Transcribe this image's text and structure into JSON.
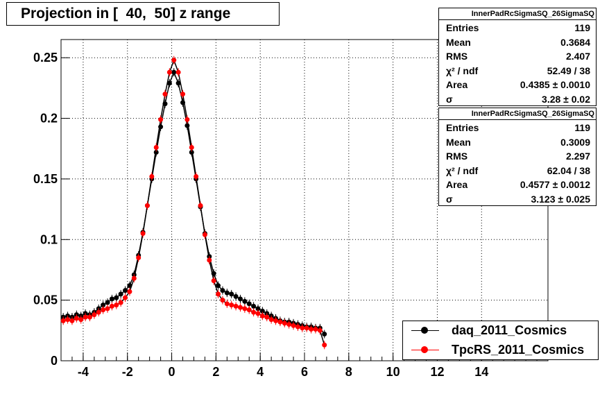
{
  "chart_data": {
    "type": "scatter",
    "title": "Projection in [  40,  50] z range",
    "xlabel": "",
    "ylabel": "",
    "xlim": [
      -5,
      17
    ],
    "ylim": [
      0,
      0.265
    ],
    "grid": true,
    "x_ticks": [
      "-4",
      "-2",
      "0",
      "2",
      "4",
      "6",
      "8",
      "10",
      "12",
      "14"
    ],
    "x_tick_values": [
      -4,
      -2,
      0,
      2,
      4,
      6,
      8,
      10,
      12,
      14
    ],
    "y_ticks": [
      "0",
      "0.05",
      "0.1",
      "0.15",
      "0.2",
      "0.25"
    ],
    "y_tick_values": [
      0,
      0.05,
      0.1,
      0.15,
      0.2,
      0.25
    ],
    "legend_position": "bottom-right",
    "series": [
      {
        "name": "daq_2011_Cosmics",
        "color": "#000000",
        "fit_sigma": 3.28,
        "points": [
          [
            -4.9,
            0.036
          ],
          [
            -4.7,
            0.037
          ],
          [
            -4.5,
            0.036
          ],
          [
            -4.3,
            0.038
          ],
          [
            -4.1,
            0.037
          ],
          [
            -3.9,
            0.039
          ],
          [
            -3.7,
            0.038
          ],
          [
            -3.5,
            0.04
          ],
          [
            -3.3,
            0.043
          ],
          [
            -3.1,
            0.046
          ],
          [
            -2.9,
            0.048
          ],
          [
            -2.7,
            0.051
          ],
          [
            -2.5,
            0.052
          ],
          [
            -2.3,
            0.055
          ],
          [
            -2.1,
            0.058
          ],
          [
            -1.9,
            0.062
          ],
          [
            -1.7,
            0.071
          ],
          [
            -1.5,
            0.087
          ],
          [
            -1.3,
            0.106
          ],
          [
            -1.1,
            0.128
          ],
          [
            -0.9,
            0.15
          ],
          [
            -0.7,
            0.172
          ],
          [
            -0.5,
            0.193
          ],
          [
            -0.3,
            0.212
          ],
          [
            -0.1,
            0.229
          ],
          [
            0.1,
            0.238
          ],
          [
            0.3,
            0.229
          ],
          [
            0.5,
            0.213
          ],
          [
            0.7,
            0.194
          ],
          [
            0.9,
            0.172
          ],
          [
            1.1,
            0.15
          ],
          [
            1.3,
            0.127
          ],
          [
            1.5,
            0.105
          ],
          [
            1.7,
            0.086
          ],
          [
            1.9,
            0.072
          ],
          [
            2.1,
            0.062
          ],
          [
            2.3,
            0.058
          ],
          [
            2.5,
            0.056
          ],
          [
            2.7,
            0.055
          ],
          [
            2.9,
            0.053
          ],
          [
            3.1,
            0.051
          ],
          [
            3.3,
            0.049
          ],
          [
            3.5,
            0.047
          ],
          [
            3.7,
            0.045
          ],
          [
            3.9,
            0.043
          ],
          [
            4.1,
            0.041
          ],
          [
            4.3,
            0.039
          ],
          [
            4.5,
            0.037
          ],
          [
            4.7,
            0.035
          ],
          [
            4.9,
            0.033
          ],
          [
            5.1,
            0.032
          ],
          [
            5.3,
            0.032
          ],
          [
            5.5,
            0.031
          ],
          [
            5.7,
            0.03
          ],
          [
            5.9,
            0.029
          ],
          [
            6.1,
            0.028
          ],
          [
            6.3,
            0.028
          ],
          [
            6.5,
            0.027
          ],
          [
            6.7,
            0.027
          ],
          [
            6.9,
            0.022
          ]
        ]
      },
      {
        "name": "TpcRS_2011_Cosmics",
        "color": "#ff0000",
        "fit_sigma": 3.123,
        "points": [
          [
            -4.9,
            0.033
          ],
          [
            -4.7,
            0.034
          ],
          [
            -4.5,
            0.033
          ],
          [
            -4.3,
            0.035
          ],
          [
            -4.1,
            0.034
          ],
          [
            -3.9,
            0.036
          ],
          [
            -3.7,
            0.036
          ],
          [
            -3.5,
            0.038
          ],
          [
            -3.3,
            0.04
          ],
          [
            -3.1,
            0.042
          ],
          [
            -2.9,
            0.043
          ],
          [
            -2.7,
            0.045
          ],
          [
            -2.5,
            0.046
          ],
          [
            -2.3,
            0.048
          ],
          [
            -2.1,
            0.052
          ],
          [
            -1.9,
            0.057
          ],
          [
            -1.7,
            0.068
          ],
          [
            -1.5,
            0.085
          ],
          [
            -1.3,
            0.105
          ],
          [
            -1.1,
            0.128
          ],
          [
            -0.9,
            0.152
          ],
          [
            -0.7,
            0.176
          ],
          [
            -0.5,
            0.199
          ],
          [
            -0.3,
            0.22
          ],
          [
            -0.1,
            0.238
          ],
          [
            0.1,
            0.248
          ],
          [
            0.3,
            0.238
          ],
          [
            0.5,
            0.22
          ],
          [
            0.7,
            0.199
          ],
          [
            0.9,
            0.176
          ],
          [
            1.1,
            0.152
          ],
          [
            1.3,
            0.128
          ],
          [
            1.5,
            0.104
          ],
          [
            1.7,
            0.083
          ],
          [
            1.9,
            0.066
          ],
          [
            2.1,
            0.055
          ],
          [
            2.3,
            0.05
          ],
          [
            2.5,
            0.047
          ],
          [
            2.7,
            0.046
          ],
          [
            2.9,
            0.045
          ],
          [
            3.1,
            0.044
          ],
          [
            3.3,
            0.043
          ],
          [
            3.5,
            0.042
          ],
          [
            3.7,
            0.04
          ],
          [
            3.9,
            0.039
          ],
          [
            4.1,
            0.037
          ],
          [
            4.3,
            0.036
          ],
          [
            4.5,
            0.034
          ],
          [
            4.7,
            0.033
          ],
          [
            4.9,
            0.032
          ],
          [
            5.1,
            0.031
          ],
          [
            5.3,
            0.03
          ],
          [
            5.5,
            0.029
          ],
          [
            5.7,
            0.028
          ],
          [
            5.9,
            0.027
          ],
          [
            6.1,
            0.027
          ],
          [
            6.3,
            0.026
          ],
          [
            6.5,
            0.026
          ],
          [
            6.7,
            0.025
          ],
          [
            6.9,
            0.013
          ]
        ]
      }
    ]
  },
  "stats": [
    {
      "title": "InnerPadRcSigmaSQ_26SigmaSQ",
      "rows": [
        {
          "label": "Entries",
          "value": "119"
        },
        {
          "label": "Mean",
          "value": "0.3684"
        },
        {
          "label": "RMS",
          "value": "2.407"
        },
        {
          "label": "χ² / ndf",
          "value": "52.49 / 38"
        },
        {
          "label": "Area",
          "value": "0.4385 ± 0.0010"
        },
        {
          "label": "σ",
          "value": "3.28 ± 0.02"
        }
      ]
    },
    {
      "title": "InnerPadRcSigmaSQ_26SigmaSQ",
      "rows": [
        {
          "label": "Entries",
          "value": "119"
        },
        {
          "label": "Mean",
          "value": "0.3009"
        },
        {
          "label": "RMS",
          "value": "2.297"
        },
        {
          "label": "χ² / ndf",
          "value": "62.04 / 38"
        },
        {
          "label": "Area",
          "value": "0.4577 ± 0.0012"
        },
        {
          "label": "σ",
          "value": "3.123 ± 0.025"
        }
      ]
    }
  ]
}
